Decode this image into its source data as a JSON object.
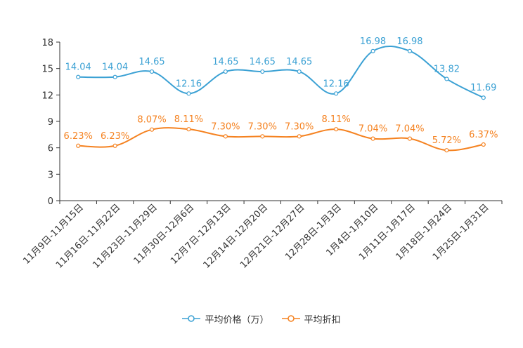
{
  "chart_data": {
    "type": "line",
    "title": "",
    "xlabel": "",
    "ylabel": "",
    "ylim": [
      0,
      18
    ],
    "yticks": [
      0,
      3,
      6,
      9,
      12,
      15,
      18
    ],
    "categories": [
      "11月9日-11月15日",
      "11月16日-11月22日",
      "11月23日-11月29日",
      "11月30日-12月6日",
      "12月7日-12月13日",
      "12月14日-12月20日",
      "12月21日-12月27日",
      "12月28日-1月3日",
      "1月4日-1月10日",
      "1月11日-1月17日",
      "1月18日-1月24日",
      "1月25日-1月31日"
    ],
    "series": [
      {
        "name": "平均价格（万）",
        "color": "#3ba1d4",
        "values": [
          14.04,
          14.04,
          14.65,
          12.16,
          14.65,
          14.65,
          14.65,
          12.16,
          16.98,
          16.98,
          13.82,
          11.69
        ],
        "labels": [
          "14.04",
          "14.04",
          "14.65",
          "12.16",
          "14.65",
          "14.65",
          "14.65",
          "12.16",
          "16.98",
          "16.98",
          "13.82",
          "11.69"
        ]
      },
      {
        "name": "平均折扣",
        "color": "#f58220",
        "values": [
          6.23,
          6.23,
          8.07,
          8.11,
          7.3,
          7.3,
          7.3,
          8.11,
          7.04,
          7.04,
          5.72,
          6.37
        ],
        "labels": [
          "6.23%",
          "6.23%",
          "8.07%",
          "8.11%",
          "7.30%",
          "7.30%",
          "7.30%",
          "8.11%",
          "7.04%",
          "7.04%",
          "5.72%",
          "6.37%"
        ]
      }
    ],
    "legend_position": "bottom-center"
  }
}
